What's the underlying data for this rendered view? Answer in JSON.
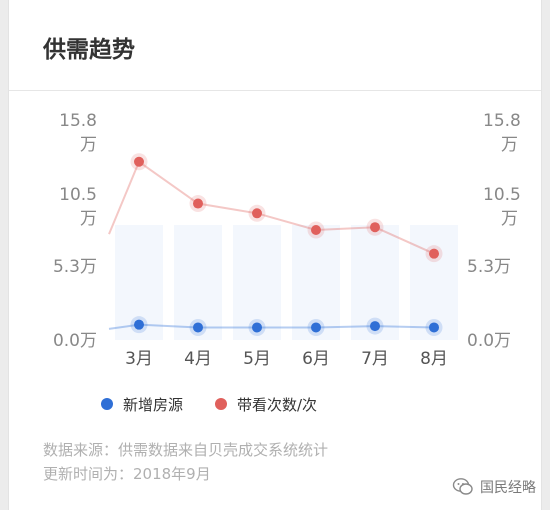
{
  "header": {
    "title": "供需趋势"
  },
  "chart_data": {
    "type": "line",
    "categories": [
      "3月",
      "4月",
      "5月",
      "6月",
      "7月",
      "8月"
    ],
    "series": [
      {
        "name": "新增房源",
        "color": "#2f6fd6",
        "values": [
          1.1,
          0.9,
          0.9,
          0.9,
          1.0,
          0.9
        ],
        "axis": "left"
      },
      {
        "name": "带看次数/次",
        "color": "#e0605c",
        "values": [
          12.8,
          9.8,
          9.1,
          7.9,
          8.1,
          6.2
        ],
        "axis": "right"
      }
    ],
    "yticks_left": [
      {
        "line1": "15.8",
        "line2": "万",
        "value": 15.8
      },
      {
        "line1": "10.5",
        "line2": "万",
        "value": 10.5
      },
      {
        "line1": "5.3万",
        "line2": "",
        "value": 5.3
      },
      {
        "line1": "0.0万",
        "line2": "",
        "value": 0
      }
    ],
    "yticks_right": [
      {
        "line1": "15.8",
        "line2": "万",
        "value": 15.8
      },
      {
        "line1": "10.5",
        "line2": "万",
        "value": 10.5
      },
      {
        "line1": "5.3万",
        "line2": "",
        "value": 5.3
      },
      {
        "line1": "0.0万",
        "line2": "",
        "value": 0
      }
    ],
    "ylim": [
      0,
      15.8
    ],
    "legend": [
      "新增房源",
      "带看次数/次"
    ],
    "legend_position": "bottom"
  },
  "footer": {
    "source": "数据来源：供需数据来自贝壳成交系统统计",
    "updated": "更新时间为：2018年9月"
  },
  "watermark": {
    "text": "国民经略",
    "icon": "wechat-icon"
  }
}
